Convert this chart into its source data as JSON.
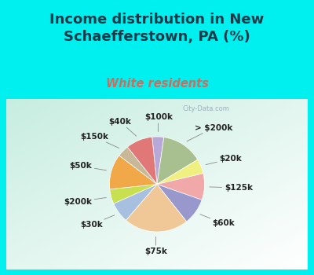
{
  "title": "Income distribution in New\nSchaefferstown, PA (%)",
  "subtitle": "White residents",
  "title_color": "#1a3a4a",
  "subtitle_color": "#c87060",
  "background_color": "#00f0f0",
  "watermark": "City-Data.com",
  "labels": [
    "$100k",
    "> $200k",
    "$20k",
    "$125k",
    "$60k",
    "$75k",
    "$30k",
    "$200k",
    "$50k",
    "$150k",
    "$40k"
  ],
  "sizes": [
    4,
    14,
    5,
    9,
    9,
    22,
    7,
    5,
    12,
    4,
    9
  ],
  "colors": [
    "#b8a8d8",
    "#a8c090",
    "#f0f080",
    "#f0a8a8",
    "#9898cc",
    "#f0c898",
    "#a8c0e0",
    "#c8e050",
    "#f0a848",
    "#c8b898",
    "#e07878"
  ],
  "label_color": "#222222",
  "label_fontsize": 7.5,
  "title_fontsize": 13,
  "subtitle_fontsize": 10.5,
  "startangle": 96
}
